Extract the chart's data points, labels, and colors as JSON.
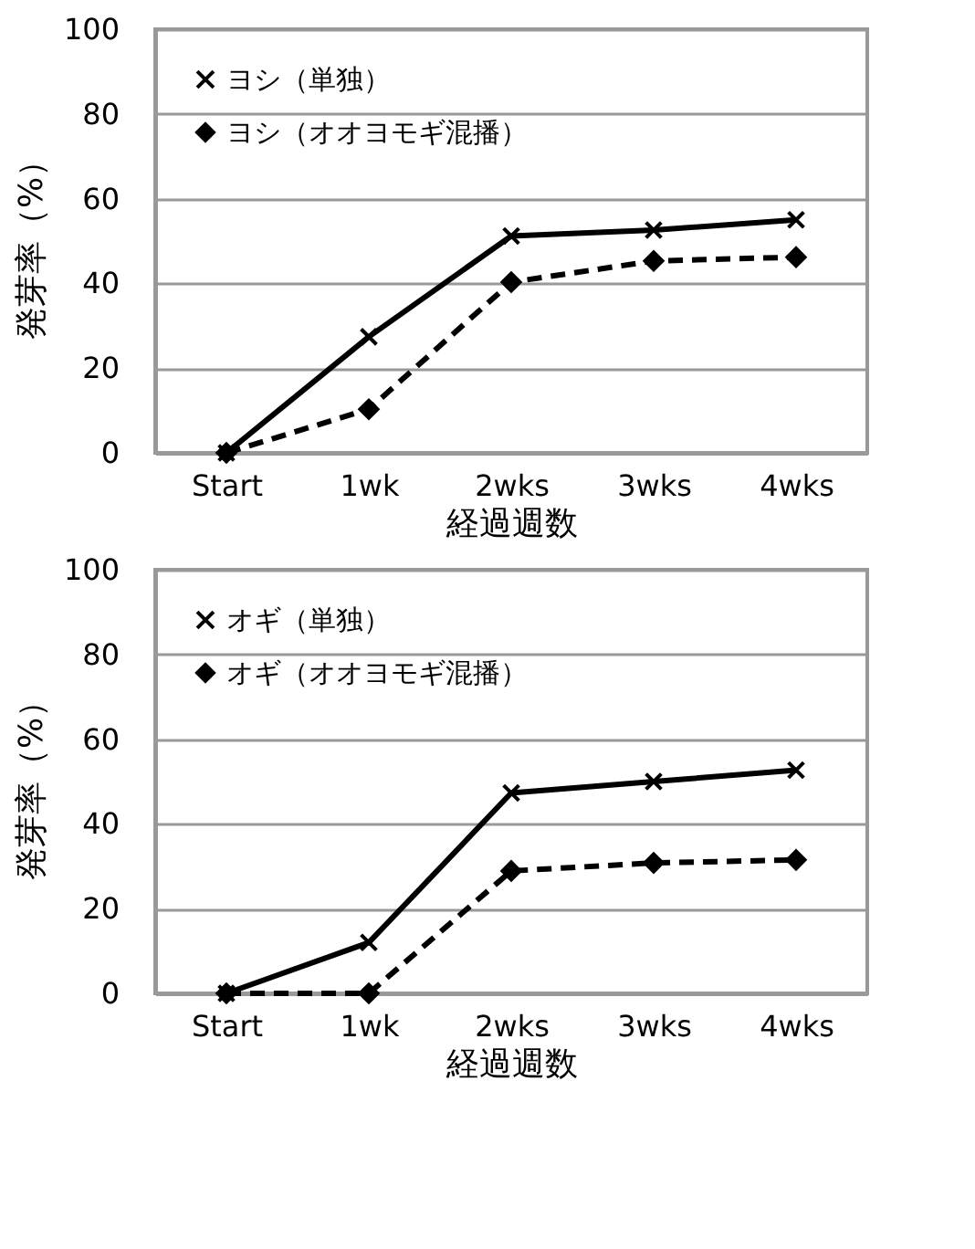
{
  "chart_data": [
    {
      "type": "line",
      "xlabel": "経過週数",
      "ylabel": "発芽率（%）",
      "categories": [
        "Start",
        "1wk",
        "2wks",
        "3wks",
        "4wks"
      ],
      "ylim": [
        0,
        100
      ],
      "yticks": [
        0,
        20,
        40,
        60,
        80,
        100
      ],
      "grid": "y",
      "legend": "top left",
      "series": [
        {
          "name": "ヨシ（単独）",
          "color": "#000000",
          "marker": "cross",
          "line_style": "solid",
          "values": [
            0,
            27.4,
            51.2,
            52.6,
            55
          ]
        },
        {
          "name": "ヨシ（オオヨモギ混播）",
          "color": "#000000",
          "marker": "diamond",
          "line_style": "dashed",
          "values": [
            0,
            10.3,
            40.3,
            45.3,
            46.2
          ]
        }
      ]
    },
    {
      "type": "line",
      "xlabel": "経過週数",
      "ylabel": "発芽率（%）",
      "categories": [
        "Start",
        "1wk",
        "2wks",
        "3wks",
        "4wks"
      ],
      "ylim": [
        0,
        100
      ],
      "yticks": [
        0,
        20,
        40,
        60,
        80,
        100
      ],
      "grid": "y",
      "legend": "top left",
      "series": [
        {
          "name": "オギ（単独）",
          "color": "#000000",
          "marker": "cross",
          "line_style": "solid",
          "values": [
            0,
            12,
            47.3,
            50,
            52.7
          ]
        },
        {
          "name": "オギ（オオヨモギ混播）",
          "color": "#000000",
          "marker": "diamond",
          "line_style": "dashed",
          "values": [
            0,
            0,
            28.9,
            30.8,
            31.5
          ]
        }
      ]
    }
  ]
}
